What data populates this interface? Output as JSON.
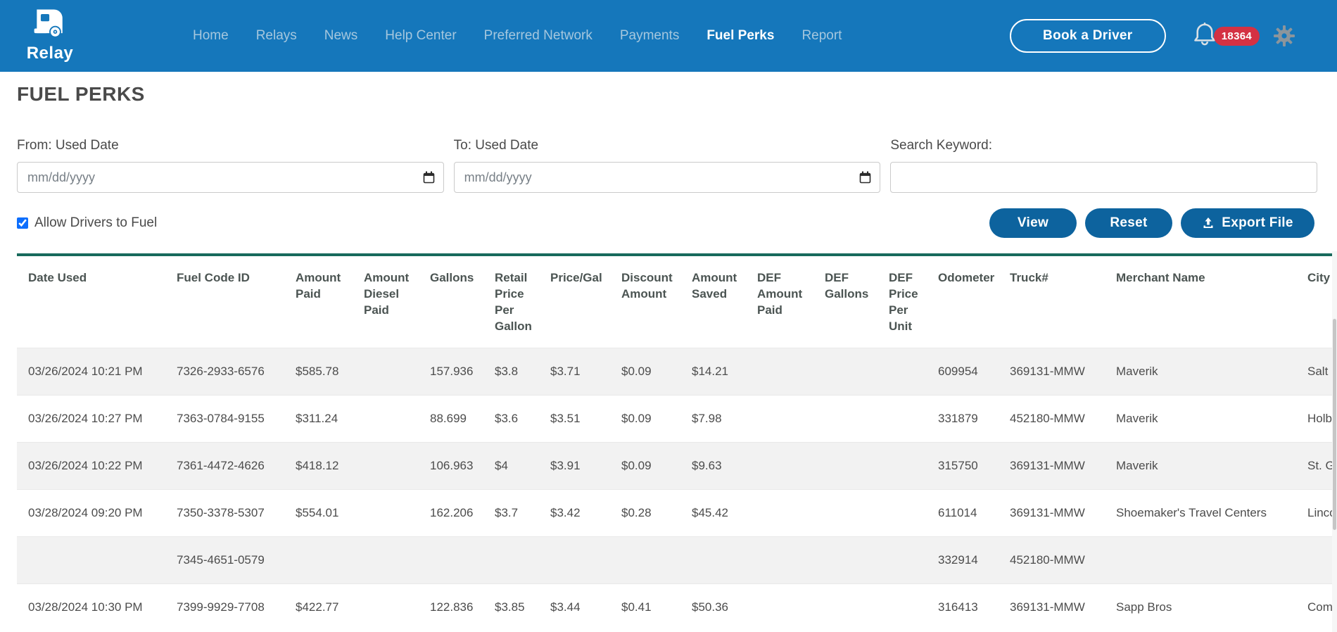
{
  "nav": {
    "brand": "Relay",
    "items": [
      {
        "label": "Home",
        "active": false
      },
      {
        "label": "Relays",
        "active": false
      },
      {
        "label": "News",
        "active": false
      },
      {
        "label": "Help Center",
        "active": false
      },
      {
        "label": "Preferred Network",
        "active": false
      },
      {
        "label": "Payments",
        "active": false
      },
      {
        "label": "Fuel Perks",
        "active": true
      },
      {
        "label": "Report",
        "active": false
      }
    ],
    "book_button": "Book a Driver",
    "notification_count": "18364"
  },
  "page": {
    "title": "FUEL PERKS"
  },
  "filters": {
    "from_label": "From: Used Date",
    "to_label": "To: Used Date",
    "search_label": "Search Keyword:",
    "date_placeholder": "mm/dd/yyyy",
    "from_value": "",
    "to_value": "",
    "search_value": "",
    "checkbox_label": "Allow Drivers to Fuel",
    "checkbox_checked": true
  },
  "actions": {
    "view": "View",
    "reset": "Reset",
    "export": "Export File"
  },
  "table": {
    "columns": [
      "Date Used",
      "Fuel Code ID",
      "Amount Paid",
      "Amount Diesel Paid",
      "Gallons",
      "Retail Price Per Gallon",
      "Price/Gal",
      "Discount Amount",
      "Amount Saved",
      "DEF Amount Paid",
      "DEF Gallons",
      "DEF Price Per Unit",
      "Odometer",
      "Truck#",
      "Merchant Name",
      "City"
    ],
    "rows": [
      [
        "03/26/2024 10:21 PM",
        "7326-2933-6576",
        "$585.78",
        "",
        "157.936",
        "$3.8",
        "$3.71",
        "$0.09",
        "$14.21",
        "",
        "",
        "",
        "609954",
        "369131-MMW",
        "Maverik",
        "Salt L"
      ],
      [
        "03/26/2024 10:27 PM",
        "7363-0784-9155",
        "$311.24",
        "",
        "88.699",
        "$3.6",
        "$3.51",
        "$0.09",
        "$7.98",
        "",
        "",
        "",
        "331879",
        "452180-MMW",
        "Maverik",
        "Holb"
      ],
      [
        "03/26/2024 10:22 PM",
        "7361-4472-4626",
        "$418.12",
        "",
        "106.963",
        "$4",
        "$3.91",
        "$0.09",
        "$9.63",
        "",
        "",
        "",
        "315750",
        "369131-MMW",
        "Maverik",
        "St. G"
      ],
      [
        "03/28/2024 09:20 PM",
        "7350-3378-5307",
        "$554.01",
        "",
        "162.206",
        "$3.7",
        "$3.42",
        "$0.28",
        "$45.42",
        "",
        "",
        "",
        "611014",
        "369131-MMW",
        "Shoemaker's Travel Centers",
        "Linco"
      ],
      [
        "",
        "7345-4651-0579",
        "",
        "",
        "",
        "",
        "",
        "",
        "",
        "",
        "",
        "",
        "332914",
        "452180-MMW",
        "",
        ""
      ],
      [
        "03/28/2024 10:30 PM",
        "7399-9929-7708",
        "$422.77",
        "",
        "122.836",
        "$3.85",
        "$3.44",
        "$0.41",
        "$50.36",
        "",
        "",
        "",
        "316413",
        "369131-MMW",
        "Sapp Bros",
        "Com"
      ]
    ]
  },
  "colors": {
    "navbar_bg": "#1577bb",
    "button_bg": "#0d639e",
    "table_accent": "#186a5c",
    "badge_red": "#d43143",
    "row_stripe": "#f2f2f2"
  }
}
